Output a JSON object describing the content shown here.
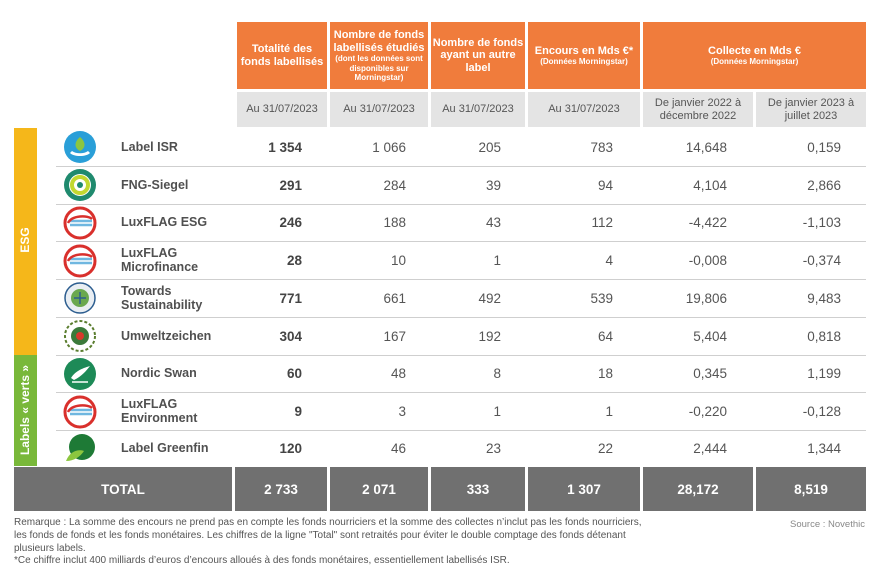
{
  "headers": {
    "col1": {
      "main": "Totalité des fonds labellisés",
      "sub": "",
      "date": "Au 31/07/2023"
    },
    "col2": {
      "main": "Nombre de fonds labellisés étudiés",
      "sub": "(dont les données sont disponibles sur Morningstar)",
      "date": "Au 31/07/2023"
    },
    "col3": {
      "main": "Nombre de fonds ayant un autre label",
      "sub": "",
      "date": "Au 31/07/2023"
    },
    "col4": {
      "main": "Encours en Mds €*",
      "sub": "(Données Morningstar)",
      "date": "Au 31/07/2023"
    },
    "col5": {
      "main": "Collecte en Mds €",
      "sub": "(Données Morningstar)",
      "date_a": "De janvier 2022 à décembre 2022",
      "date_b": "De janvier 2023 à juillet 2023"
    }
  },
  "groups": {
    "esg": "ESG",
    "verts": "Labels « verts »"
  },
  "rows": [
    {
      "name": "Label ISR",
      "logo": "label-isr-logo",
      "total": "1 354",
      "studied": "1 066",
      "other": "205",
      "aum": "783",
      "flow2022": "14,648",
      "flow2023": "0,159"
    },
    {
      "name": "FNG-Siegel",
      "logo": "fng-siegel-logo",
      "total": "291",
      "studied": "284",
      "other": "39",
      "aum": "94",
      "flow2022": "4,104",
      "flow2023": "2,866"
    },
    {
      "name": "LuxFLAG ESG",
      "logo": "luxflag-logo",
      "total": "246",
      "studied": "188",
      "other": "43",
      "aum": "112",
      "flow2022": "-4,422",
      "flow2023": "-1,103"
    },
    {
      "name": "LuxFLAG Microfinance",
      "logo": "luxflag-logo",
      "total": "28",
      "studied": "10",
      "other": "1",
      "aum": "4",
      "flow2022": "-0,008",
      "flow2023": "-0,374"
    },
    {
      "name": "Towards Sustainability",
      "logo": "towards-sustainability-logo",
      "total": "771",
      "studied": "661",
      "other": "492",
      "aum": "539",
      "flow2022": "19,806",
      "flow2023": "9,483"
    },
    {
      "name": "Umweltzeichen",
      "logo": "umweltzeichen-logo",
      "total": "304",
      "studied": "167",
      "other": "192",
      "aum": "64",
      "flow2022": "5,404",
      "flow2023": "0,818"
    },
    {
      "name": "Nordic Swan",
      "logo": "nordic-swan-logo",
      "total": "60",
      "studied": "48",
      "other": "8",
      "aum": "18",
      "flow2022": "0,345",
      "flow2023": "1,199"
    },
    {
      "name": "LuxFLAG Environment",
      "logo": "luxflag-logo",
      "total": "9",
      "studied": "3",
      "other": "1",
      "aum": "1",
      "flow2022": "-0,220",
      "flow2023": "-0,128"
    },
    {
      "name": "Label Greenfin",
      "logo": "label-greenfin-logo",
      "total": "120",
      "studied": "46",
      "other": "23",
      "aum": "22",
      "flow2022": "2,444",
      "flow2023": "1,344"
    }
  ],
  "total": {
    "label": "TOTAL",
    "total": "2 733",
    "studied": "2 071",
    "other": "333",
    "aum": "1 307",
    "flow2022": "28,172",
    "flow2023": "8,519"
  },
  "note_line1": "Remarque : La somme des encours ne prend pas en compte les fonds nourriciers et la somme des collectes n’inclut pas les fonds nourriciers, les fonds de fonds et les fonds monétaires. Les chiffres de la ligne \"Total\" sont retraités pour éviter le double comptage des fonds détenant plusieurs labels.",
  "note_line2": "*Ce chiffre inclut 400 milliards d’euros d’encours alloués à des fonds monétaires, essentiellement labellisés ISR.",
  "source": "Source : Novethic",
  "colors": {
    "orange": "#f07c3c",
    "esg_yellow": "#f5b71a",
    "green": "#79b83a",
    "total_grey": "#707070"
  }
}
